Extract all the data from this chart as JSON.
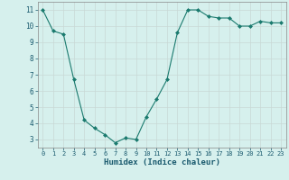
{
  "x": [
    0,
    1,
    2,
    3,
    4,
    5,
    6,
    7,
    8,
    9,
    10,
    11,
    12,
    13,
    14,
    15,
    16,
    17,
    18,
    19,
    20,
    21,
    22,
    23
  ],
  "y": [
    11,
    9.7,
    9.5,
    6.7,
    4.2,
    3.7,
    3.3,
    2.8,
    3.1,
    3.0,
    4.4,
    5.5,
    6.7,
    9.6,
    11.0,
    11.0,
    10.6,
    10.5,
    10.5,
    10.0,
    10.0,
    10.3,
    10.2,
    10.2
  ],
  "xlabel": "Humidex (Indice chaleur)",
  "ylim": [
    2.5,
    11.5
  ],
  "xlim": [
    -0.5,
    23.5
  ],
  "yticks": [
    3,
    4,
    5,
    6,
    7,
    8,
    9,
    10,
    11
  ],
  "xticks": [
    0,
    1,
    2,
    3,
    4,
    5,
    6,
    7,
    8,
    9,
    10,
    11,
    12,
    13,
    14,
    15,
    16,
    17,
    18,
    19,
    20,
    21,
    22,
    23
  ],
  "line_color": "#1a7a6e",
  "marker": "D",
  "marker_size": 2.0,
  "bg_color": "#d6f0ed",
  "grid_color": "#c8d8d5",
  "tick_label_color": "#1a5a6e",
  "xlabel_color": "#1a5a6e",
  "xlabel_fontsize": 6.5,
  "tick_fontsize": 5.0
}
